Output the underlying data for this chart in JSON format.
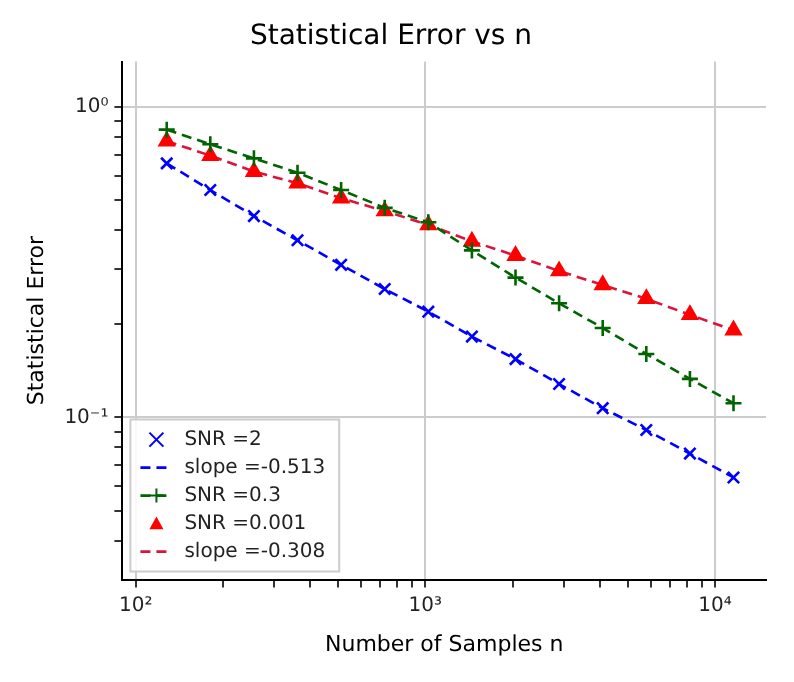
{
  "chart_data": {
    "type": "line",
    "title": "Statistical Error vs n",
    "xlabel": "Number of Samples n",
    "ylabel": "Statistical Error",
    "log": "xy",
    "grid": true,
    "legend": "bottom left",
    "x": [
      128,
      181,
      256,
      362,
      512,
      724,
      1024,
      1448,
      2048,
      2896,
      4096,
      5793,
      8192,
      11585
    ],
    "xlim": [
      90,
      15000
    ],
    "ylim": [
      0.03,
      1.4
    ],
    "xticks": [
      {
        "value": 100,
        "label": "10²"
      },
      {
        "value": 200,
        "label": null
      },
      {
        "value": 300,
        "label": null
      },
      {
        "value": 400,
        "label": null
      },
      {
        "value": 500,
        "label": null
      },
      {
        "value": 600,
        "label": null
      },
      {
        "value": 700,
        "label": null
      },
      {
        "value": 800,
        "label": null
      },
      {
        "value": 900,
        "label": null
      },
      {
        "value": 1000,
        "label": "10³"
      },
      {
        "value": 2000,
        "label": null
      },
      {
        "value": 3000,
        "label": null
      },
      {
        "value": 4000,
        "label": null
      },
      {
        "value": 5000,
        "label": null
      },
      {
        "value": 6000,
        "label": null
      },
      {
        "value": 7000,
        "label": null
      },
      {
        "value": 8000,
        "label": null
      },
      {
        "value": 9000,
        "label": null
      },
      {
        "value": 10000,
        "label": "10⁴"
      }
    ],
    "yticks": [
      {
        "value": 0.04,
        "label": null
      },
      {
        "value": 0.05,
        "label": null
      },
      {
        "value": 0.06,
        "label": null
      },
      {
        "value": 0.07,
        "label": null
      },
      {
        "value": 0.08,
        "label": null
      },
      {
        "value": 0.09,
        "label": null
      },
      {
        "value": 0.1,
        "label": "10⁻¹"
      },
      {
        "value": 0.2,
        "label": null
      },
      {
        "value": 0.3,
        "label": null
      },
      {
        "value": 0.4,
        "label": null
      },
      {
        "value": 0.5,
        "label": null
      },
      {
        "value": 0.6,
        "label": null
      },
      {
        "value": 0.7,
        "label": null
      },
      {
        "value": 0.8,
        "label": null
      },
      {
        "value": 0.9,
        "label": null
      },
      {
        "value": 1,
        "label": "10⁰"
      }
    ],
    "series": [
      {
        "name": "SNR =2",
        "type": "scatter",
        "marker": "x",
        "color": "#0000ff",
        "values": [
          0.658,
          0.54,
          0.445,
          0.372,
          0.31,
          0.259,
          0.219,
          0.182,
          0.154,
          0.128,
          0.107,
          0.091,
          0.0764,
          0.064
        ]
      },
      {
        "name": "slope =-0.513",
        "type": "line",
        "marker": "none",
        "line_style": "dashed",
        "color": "#0000ff",
        "values": [
          0.658,
          0.54,
          0.445,
          0.372,
          0.31,
          0.259,
          0.219,
          0.182,
          0.154,
          0.128,
          0.107,
          0.091,
          0.0764,
          0.064
        ]
      },
      {
        "name": "SNR =0.3",
        "type": "line",
        "marker": "cross",
        "line_style": "dashed",
        "color": "#006400",
        "values": [
          0.845,
          0.758,
          0.683,
          0.614,
          0.54,
          0.473,
          0.425,
          0.345,
          0.282,
          0.233,
          0.194,
          0.16,
          0.133,
          0.111
        ]
      },
      {
        "name": "SNR =0.001",
        "type": "scatter",
        "marker": "triangle",
        "color": "#ff0000",
        "values": [
          0.776,
          0.697,
          0.619,
          0.568,
          0.508,
          0.462,
          0.417,
          0.369,
          0.332,
          0.296,
          0.267,
          0.241,
          0.214,
          0.191
        ]
      },
      {
        "name": "slope =-0.308",
        "type": "line",
        "marker": "none",
        "line_style": "dashed",
        "color": "#dc143c",
        "values": [
          0.776,
          0.697,
          0.619,
          0.568,
          0.508,
          0.462,
          0.417,
          0.369,
          0.332,
          0.296,
          0.267,
          0.241,
          0.214,
          0.191
        ]
      }
    ]
  }
}
